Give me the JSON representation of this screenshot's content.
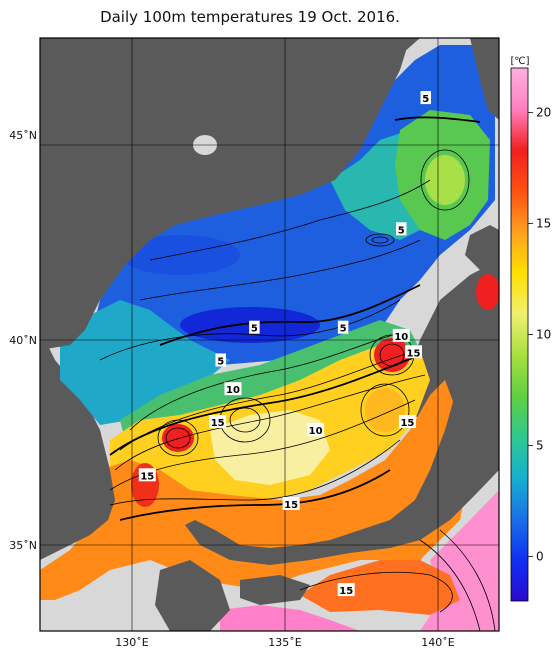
{
  "title": "Daily 100m temperatures 19 Oct. 2016.",
  "axes": {
    "lon_ticks": [
      {
        "value": 130,
        "label": "130˚E"
      },
      {
        "value": 135,
        "label": "135˚E"
      },
      {
        "value": 140,
        "label": "140˚E"
      }
    ],
    "lat_ticks": [
      {
        "value": 45,
        "label": "45˚N"
      },
      {
        "value": 40,
        "label": "40˚N"
      },
      {
        "value": 35,
        "label": "35˚N"
      }
    ],
    "lon_range": [
      127,
      142
    ],
    "lat_range": [
      33,
      48
    ]
  },
  "colorbar": {
    "unit": "[℃]",
    "ticks": [
      {
        "value": 20,
        "label": "20"
      },
      {
        "value": 15,
        "label": "15"
      },
      {
        "value": 10,
        "label": "10"
      },
      {
        "value": 5,
        "label": "5"
      },
      {
        "value": 0,
        "label": "0"
      }
    ],
    "range": [
      -2,
      22
    ],
    "colors": [
      "#2a0ad0",
      "#1030f0",
      "#1a70e8",
      "#16b0d0",
      "#30c890",
      "#60d040",
      "#a8e040",
      "#f0f070",
      "#ffe000",
      "#ffa020",
      "#ff5010",
      "#f02020",
      "#ff80c0",
      "#ffb0e0"
    ]
  },
  "contour_labels": [
    {
      "text": "5",
      "lon": 139.6,
      "lat": 45.9
    },
    {
      "text": "5",
      "lon": 138.8,
      "lat": 42.7
    },
    {
      "text": "5",
      "lon": 134.0,
      "lat": 40.3
    },
    {
      "text": "5",
      "lon": 136.9,
      "lat": 40.3
    },
    {
      "text": "5",
      "lon": 132.9,
      "lat": 39.5
    },
    {
      "text": "10",
      "lon": 138.8,
      "lat": 40.1
    },
    {
      "text": "15",
      "lon": 139.2,
      "lat": 39.7
    },
    {
      "text": "10",
      "lon": 133.3,
      "lat": 38.8
    },
    {
      "text": "15",
      "lon": 132.8,
      "lat": 38.0
    },
    {
      "text": "10",
      "lon": 136.0,
      "lat": 37.8
    },
    {
      "text": "15",
      "lon": 139.0,
      "lat": 38.0
    },
    {
      "text": "15",
      "lon": 130.5,
      "lat": 36.7
    },
    {
      "text": "15",
      "lon": 135.2,
      "lat": 36.0
    },
    {
      "text": "15",
      "lon": 137.0,
      "lat": 33.9
    }
  ],
  "legend_colors": {
    "land": "#5a5a5a",
    "coast_gray": "#d8d8d8",
    "frame": "#000000"
  }
}
